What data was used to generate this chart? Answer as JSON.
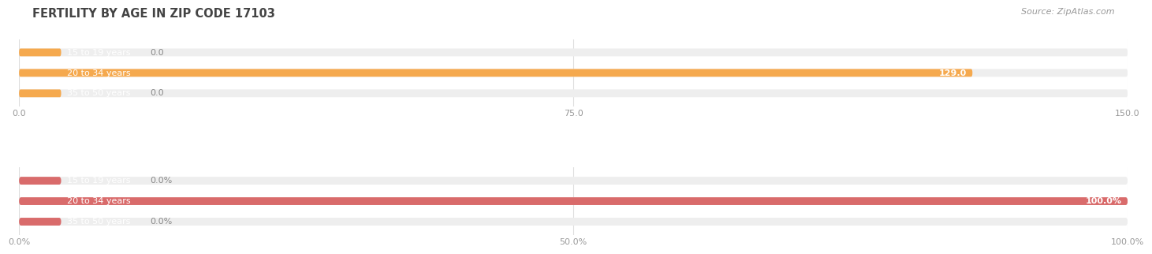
{
  "title": "FERTILITY BY AGE IN ZIP CODE 17103",
  "source": "Source: ZipAtlas.com",
  "top_chart": {
    "categories": [
      "15 to 19 years",
      "20 to 34 years",
      "35 to 50 years"
    ],
    "values": [
      0.0,
      129.0,
      0.0
    ],
    "xlim": [
      0,
      150
    ],
    "xticks": [
      0.0,
      75.0,
      150.0
    ],
    "xtick_labels": [
      "0.0",
      "75.0",
      "150.0"
    ],
    "bar_color": "#F5A94E",
    "bar_bg_color": "#EEEEEE"
  },
  "bottom_chart": {
    "categories": [
      "15 to 19 years",
      "20 to 34 years",
      "35 to 50 years"
    ],
    "values": [
      0.0,
      100.0,
      0.0
    ],
    "xlim": [
      0,
      100
    ],
    "xticks": [
      0.0,
      50.0,
      100.0
    ],
    "xtick_labels": [
      "0.0%",
      "50.0%",
      "100.0%"
    ],
    "bar_color": "#D96B6B",
    "bar_bg_color": "#EEEEEE"
  },
  "title_color": "#444444",
  "source_color": "#999999",
  "tick_color": "#999999",
  "label_fontsize": 8,
  "tick_fontsize": 8,
  "category_fontsize": 8,
  "title_fontsize": 10.5,
  "bar_height": 0.38
}
